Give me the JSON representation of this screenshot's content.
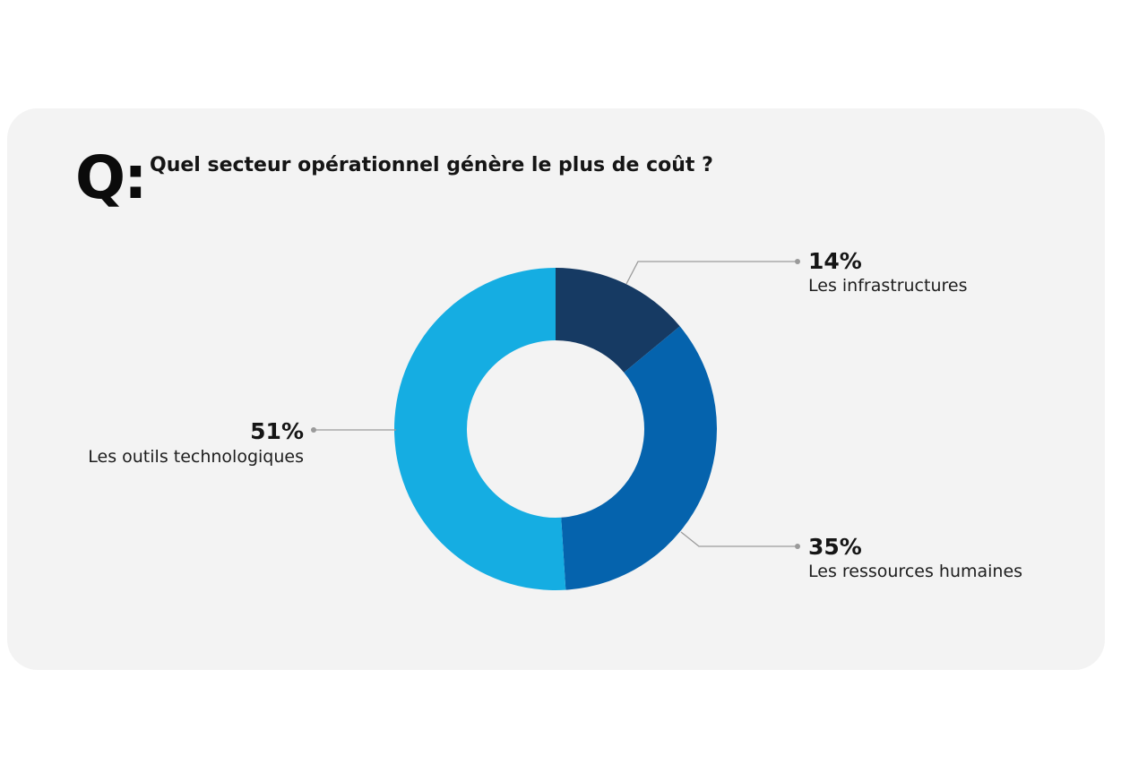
{
  "question": {
    "prefix": "Q:",
    "text": "Quel secteur opérationnel génère le plus de coût ?"
  },
  "chart_data": {
    "type": "pie",
    "title": "Quel secteur opérationnel génère le plus de coût ?",
    "donut": true,
    "categories": [
      "Les infrastructures",
      "Les ressources humaines",
      "Les outils technologiques"
    ],
    "values": [
      14,
      35,
      51
    ],
    "value_labels": [
      "14%",
      "35%",
      "51%"
    ],
    "colors": [
      "#163a63",
      "#0563ad",
      "#15ade2"
    ]
  }
}
